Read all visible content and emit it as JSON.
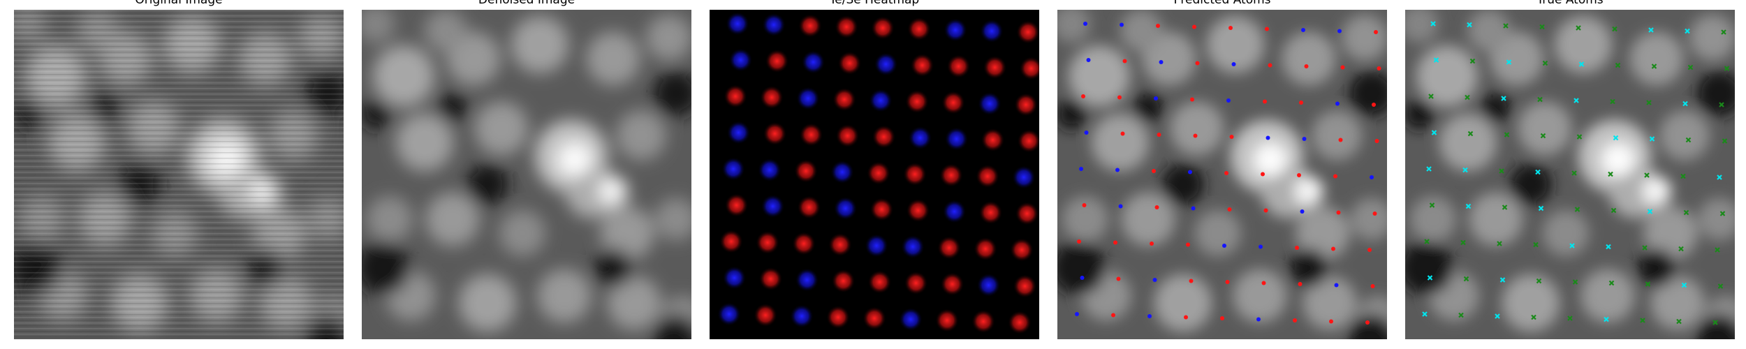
{
  "panels": [
    {
      "title": "Original Image",
      "kind": "grayscale-noisy"
    },
    {
      "title": "Denoised Image",
      "kind": "grayscale-smooth"
    },
    {
      "title": "Te/Se Heatmap",
      "kind": "heatmap"
    },
    {
      "title": "Predicted Atoms",
      "kind": "overlay-dots"
    },
    {
      "title": "True Atoms",
      "kind": "overlay-crosses"
    }
  ],
  "colors": {
    "te": "#ff2020",
    "se": "#2020ff",
    "true_a": "#00e5ee",
    "true_b": "#1a8a1a",
    "background": "#000000"
  }
}
